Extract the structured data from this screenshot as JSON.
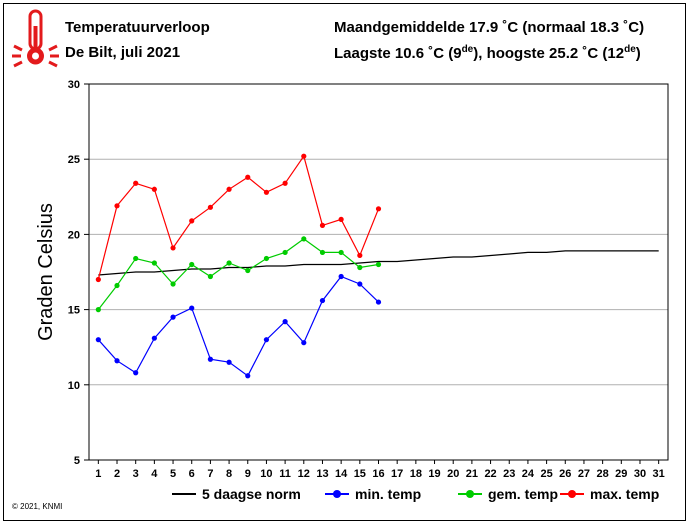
{
  "header": {
    "title": "Temperatuurverloop",
    "subtitle": "De Bilt, juli 2021",
    "avg_line": "Maandgemiddelde 17.9 ˚C (normaal 18.3 ˚C)",
    "range_line_pre": "Laagste 10.6 ˚C (9",
    "range_sup1": "de",
    "range_line_mid": "), hoogste 25.2 ˚C (12",
    "range_sup2": "de",
    "range_line_post": ")"
  },
  "copyright": "© 2021, KNMI",
  "icon": "thermometer-icon",
  "chart_data": {
    "type": "line",
    "title": "Temperatuurverloop",
    "ylabel": "Graden Celsius",
    "xlabel": "",
    "xlim": [
      0.5,
      31.5
    ],
    "ylim": [
      5,
      30
    ],
    "yticks": [
      5,
      10,
      15,
      20,
      25,
      30
    ],
    "xticks": [
      1,
      2,
      3,
      4,
      5,
      6,
      7,
      8,
      9,
      10,
      11,
      12,
      13,
      14,
      15,
      16,
      17,
      18,
      19,
      20,
      21,
      22,
      23,
      24,
      25,
      26,
      27,
      28,
      29,
      30,
      31
    ],
    "grid": "horizontal",
    "legend_position": "bottom",
    "series": [
      {
        "name": "5 daagse norm",
        "color": "#000000",
        "markers": false,
        "x": [
          1,
          2,
          3,
          4,
          5,
          6,
          7,
          8,
          9,
          10,
          11,
          12,
          13,
          14,
          15,
          16,
          17,
          18,
          19,
          20,
          21,
          22,
          23,
          24,
          25,
          26,
          27,
          28,
          29,
          30,
          31
        ],
        "values": [
          17.3,
          17.4,
          17.5,
          17.5,
          17.6,
          17.7,
          17.7,
          17.8,
          17.8,
          17.9,
          17.9,
          18.0,
          18.0,
          18.0,
          18.1,
          18.2,
          18.2,
          18.3,
          18.4,
          18.5,
          18.5,
          18.6,
          18.7,
          18.8,
          18.8,
          18.9,
          18.9,
          18.9,
          18.9,
          18.9,
          18.9
        ]
      },
      {
        "name": "min. temp",
        "color": "#0000ff",
        "markers": true,
        "x": [
          1,
          2,
          3,
          4,
          5,
          6,
          7,
          8,
          9,
          10,
          11,
          12,
          13,
          14,
          15,
          16
        ],
        "values": [
          13.0,
          11.6,
          10.8,
          13.1,
          14.5,
          15.1,
          11.7,
          11.5,
          10.6,
          13.0,
          14.2,
          12.8,
          15.6,
          17.2,
          16.7,
          15.5
        ]
      },
      {
        "name": "gem. temp",
        "color": "#00cc00",
        "markers": true,
        "x": [
          1,
          2,
          3,
          4,
          5,
          6,
          7,
          8,
          9,
          10,
          11,
          12,
          13,
          14,
          15,
          16
        ],
        "values": [
          15.0,
          16.6,
          18.4,
          18.1,
          16.7,
          18.0,
          17.2,
          18.1,
          17.6,
          18.4,
          18.8,
          19.7,
          18.8,
          18.8,
          17.8,
          18.0
        ]
      },
      {
        "name": "max. temp",
        "color": "#ff0000",
        "markers": true,
        "x": [
          1,
          2,
          3,
          4,
          5,
          6,
          7,
          8,
          9,
          10,
          11,
          12,
          13,
          14,
          15,
          16
        ],
        "values": [
          17.0,
          21.9,
          23.4,
          23.0,
          19.1,
          20.9,
          21.8,
          23.0,
          23.8,
          22.8,
          23.4,
          25.2,
          20.6,
          21.0,
          18.6,
          21.7
        ]
      }
    ]
  }
}
